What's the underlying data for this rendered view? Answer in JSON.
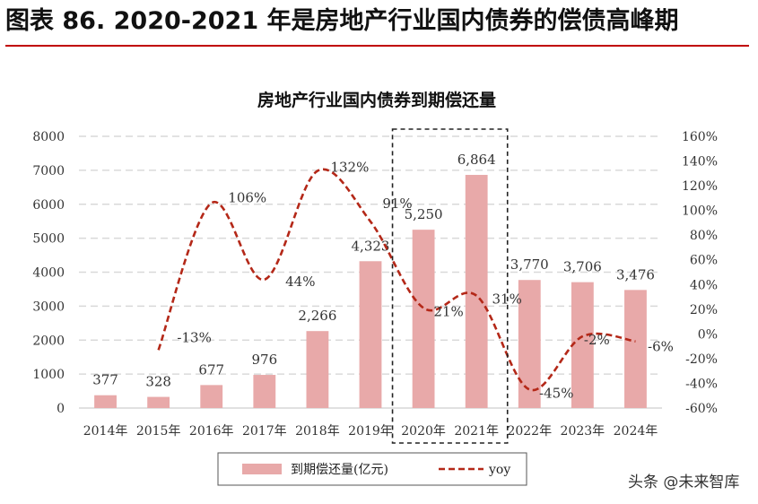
{
  "figure_title": "图表 86. 2020-2021 年是房地产行业国内债券的偿债高峰期",
  "watermark": "头条 @未来智库",
  "colors": {
    "bar": "#e8a9a9",
    "line": "#b42818",
    "rule": "#c00000",
    "grid": "#d9d9d9"
  },
  "chart_data": {
    "type": "bar",
    "title": "房地产行业国内债券到期偿还量",
    "categories": [
      "2014年",
      "2015年",
      "2016年",
      "2017年",
      "2018年",
      "2019年",
      "2020年",
      "2021年",
      "2022年",
      "2023年",
      "2024年"
    ],
    "series": [
      {
        "name": "到期偿还量(亿元)",
        "type": "bar",
        "axis": "left",
        "values": [
          377,
          328,
          677,
          976,
          2266,
          4323,
          5250,
          6864,
          3770,
          3706,
          3476
        ],
        "labels": [
          "377",
          "328",
          "677",
          "976",
          "2,266",
          "4,323",
          "5,250",
          "6,864",
          "3,770",
          "3,706",
          "3,476"
        ]
      },
      {
        "name": "yoy",
        "type": "line",
        "style": "dashed-smooth",
        "axis": "right",
        "values": [
          null,
          -13,
          106,
          44,
          132,
          91,
          21,
          31,
          -45,
          -2,
          -6
        ],
        "labels": [
          "",
          "-13%",
          "106%",
          "44%",
          "132%",
          "91%",
          "21%",
          "31%",
          "-45%",
          "-2%",
          "-6%"
        ]
      }
    ],
    "y_left": {
      "min": 0,
      "max": 8000,
      "ticks": [
        "0",
        "1000",
        "2000",
        "3000",
        "4000",
        "5000",
        "6000",
        "7000",
        "8000"
      ]
    },
    "y_right": {
      "min": -60,
      "max": 160,
      "ticks": [
        "-60%",
        "-40%",
        "-20%",
        "0%",
        "20%",
        "40%",
        "60%",
        "80%",
        "100%",
        "120%",
        "140%",
        "160%"
      ]
    },
    "grid": true,
    "highlight": {
      "categories": [
        "2020年",
        "2021年"
      ],
      "style": "dashed-box"
    },
    "legend": {
      "placement": "bottom"
    }
  }
}
